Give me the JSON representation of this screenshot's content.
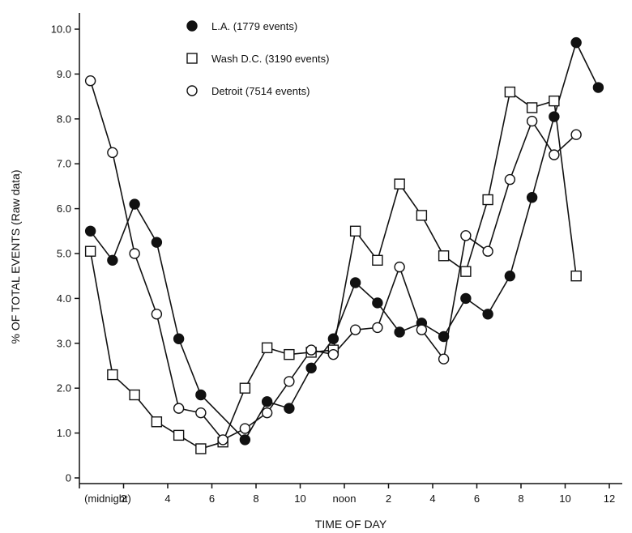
{
  "chart_data": {
    "type": "line",
    "xlabel": "TIME OF DAY",
    "ylabel": "% OF TOTAL EVENTS (Raw data)",
    "xlim": [
      0,
      24
    ],
    "ylim": [
      0,
      10.5
    ],
    "x_ticks": [
      {
        "x": 0,
        "label": "(midnight)"
      },
      {
        "x": 2,
        "label": "2"
      },
      {
        "x": 4,
        "label": "4"
      },
      {
        "x": 6,
        "label": "6"
      },
      {
        "x": 8,
        "label": "8"
      },
      {
        "x": 10,
        "label": "10"
      },
      {
        "x": 12,
        "label": "noon"
      },
      {
        "x": 14,
        "label": "2"
      },
      {
        "x": 16,
        "label": "4"
      },
      {
        "x": 18,
        "label": "6"
      },
      {
        "x": 20,
        "label": "8"
      },
      {
        "x": 22,
        "label": "10"
      },
      {
        "x": 24,
        "label": "12"
      }
    ],
    "y_ticks": [
      {
        "y": 0,
        "label": "0"
      },
      {
        "y": 1,
        "label": "1.0"
      },
      {
        "y": 2,
        "label": "2.0"
      },
      {
        "y": 3,
        "label": "3.0"
      },
      {
        "y": 4,
        "label": "4.0"
      },
      {
        "y": 5,
        "label": "5.0"
      },
      {
        "y": 6,
        "label": "6.0"
      },
      {
        "y": 7,
        "label": "7.0"
      },
      {
        "y": 8,
        "label": "8.0"
      },
      {
        "y": 9,
        "label": "9.0"
      },
      {
        "y": 10,
        "label": "10.0"
      }
    ],
    "legend_position": "top-center",
    "grid": false,
    "series": [
      {
        "name": "L.A. (1779 events)",
        "marker": "filled-circle",
        "points": [
          {
            "x": 0.5,
            "y": 5.5
          },
          {
            "x": 1.5,
            "y": 4.85
          },
          {
            "x": 2.5,
            "y": 6.1
          },
          {
            "x": 3.5,
            "y": 5.25
          },
          {
            "x": 4.5,
            "y": 3.1
          },
          {
            "x": 5.5,
            "y": 1.85
          },
          {
            "x": 7.5,
            "y": 0.85
          },
          {
            "x": 8.5,
            "y": 1.7
          },
          {
            "x": 9.5,
            "y": 1.55
          },
          {
            "x": 10.5,
            "y": 2.45
          },
          {
            "x": 11.5,
            "y": 3.1
          },
          {
            "x": 12.5,
            "y": 4.35
          },
          {
            "x": 13.5,
            "y": 3.9
          },
          {
            "x": 14.5,
            "y": 3.25
          },
          {
            "x": 15.5,
            "y": 3.45
          },
          {
            "x": 16.5,
            "y": 3.15
          },
          {
            "x": 17.5,
            "y": 4.0
          },
          {
            "x": 18.5,
            "y": 3.65
          },
          {
            "x": 19.5,
            "y": 4.5
          },
          {
            "x": 20.5,
            "y": 6.25
          },
          {
            "x": 21.5,
            "y": 8.05
          },
          {
            "x": 22.5,
            "y": 9.7
          },
          {
            "x": 23.5,
            "y": 8.7
          }
        ]
      },
      {
        "name": "Wash D.C. (3190 events)",
        "marker": "open-square",
        "points": [
          {
            "x": 0.5,
            "y": 5.05
          },
          {
            "x": 1.5,
            "y": 2.3
          },
          {
            "x": 2.5,
            "y": 1.85
          },
          {
            "x": 3.5,
            "y": 1.25
          },
          {
            "x": 4.5,
            "y": 0.95
          },
          {
            "x": 5.5,
            "y": 0.65
          },
          {
            "x": 6.5,
            "y": 0.8
          },
          {
            "x": 7.5,
            "y": 2.0
          },
          {
            "x": 8.5,
            "y": 2.9
          },
          {
            "x": 9.5,
            "y": 2.75
          },
          {
            "x": 10.5,
            "y": 2.8
          },
          {
            "x": 11.5,
            "y": 2.85
          },
          {
            "x": 12.5,
            "y": 5.5
          },
          {
            "x": 13.5,
            "y": 4.85
          },
          {
            "x": 14.5,
            "y": 6.55
          },
          {
            "x": 15.5,
            "y": 5.85
          },
          {
            "x": 16.5,
            "y": 4.95
          },
          {
            "x": 17.5,
            "y": 4.6
          },
          {
            "x": 18.5,
            "y": 6.2
          },
          {
            "x": 19.5,
            "y": 8.6
          },
          {
            "x": 20.5,
            "y": 8.25
          },
          {
            "x": 21.5,
            "y": 8.4
          },
          {
            "x": 22.5,
            "y": 4.5
          }
        ]
      },
      {
        "name": "Detroit (7514 events)",
        "marker": "open-circle",
        "points": [
          {
            "x": 0.5,
            "y": 8.85
          },
          {
            "x": 1.5,
            "y": 7.25
          },
          {
            "x": 2.5,
            "y": 5.0
          },
          {
            "x": 3.5,
            "y": 3.65
          },
          {
            "x": 4.5,
            "y": 1.55
          },
          {
            "x": 5.5,
            "y": 1.45
          },
          {
            "x": 6.5,
            "y": 0.85
          },
          {
            "x": 7.5,
            "y": 1.1
          },
          {
            "x": 8.5,
            "y": 1.45
          },
          {
            "x": 9.5,
            "y": 2.15
          },
          {
            "x": 10.5,
            "y": 2.85
          },
          {
            "x": 11.5,
            "y": 2.75
          },
          {
            "x": 12.5,
            "y": 3.3
          },
          {
            "x": 13.5,
            "y": 3.35
          },
          {
            "x": 14.5,
            "y": 4.7
          },
          {
            "x": 15.5,
            "y": 3.3
          },
          {
            "x": 16.5,
            "y": 2.65
          },
          {
            "x": 17.5,
            "y": 5.4
          },
          {
            "x": 18.5,
            "y": 5.05
          },
          {
            "x": 19.5,
            "y": 6.65
          },
          {
            "x": 20.5,
            "y": 7.95
          },
          {
            "x": 21.5,
            "y": 7.2
          },
          {
            "x": 22.5,
            "y": 7.65
          }
        ]
      }
    ]
  }
}
